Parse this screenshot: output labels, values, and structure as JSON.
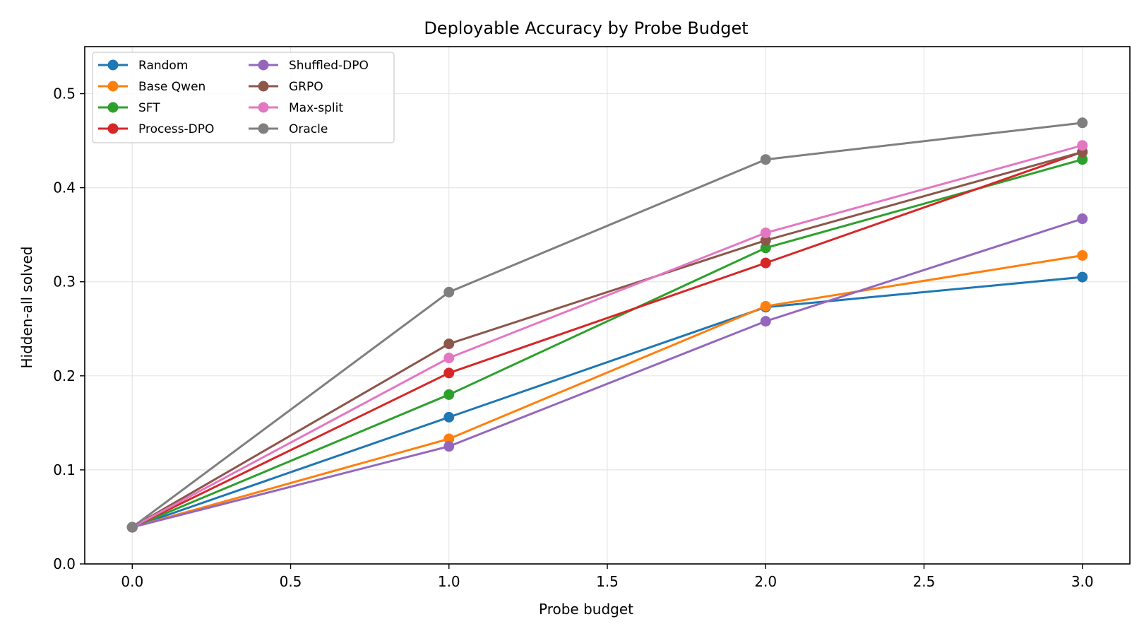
{
  "chart_data": {
    "type": "line",
    "title": "Deployable Accuracy by Probe Budget",
    "xlabel": "Probe budget",
    "ylabel": "Hidden-all solved",
    "x": [
      0,
      1,
      2,
      3
    ],
    "xlim": [
      -0.15,
      3.15
    ],
    "ylim": [
      0.0,
      0.55
    ],
    "xticks": [
      "0.0",
      "0.5",
      "1.0",
      "1.5",
      "2.0",
      "2.5",
      "3.0"
    ],
    "yticks": [
      "0.0",
      "0.1",
      "0.2",
      "0.3",
      "0.4",
      "0.5"
    ],
    "grid": true,
    "legend_position": "top-left",
    "legend_columns": 2,
    "series": [
      {
        "name": "Random",
        "color": "#1f77b4",
        "values": [
          0.039,
          0.156,
          0.273,
          0.305
        ]
      },
      {
        "name": "Base Qwen",
        "color": "#ff7f0e",
        "values": [
          0.039,
          0.133,
          0.274,
          0.328
        ]
      },
      {
        "name": "SFT",
        "color": "#2ca02c",
        "values": [
          0.039,
          0.18,
          0.336,
          0.43
        ]
      },
      {
        "name": "Process-DPO",
        "color": "#d62728",
        "values": [
          0.039,
          0.203,
          0.32,
          0.438
        ]
      },
      {
        "name": "Shuffled-DPO",
        "color": "#9467bd",
        "values": [
          0.039,
          0.125,
          0.258,
          0.367
        ]
      },
      {
        "name": "GRPO",
        "color": "#8c564b",
        "values": [
          0.039,
          0.234,
          0.344,
          0.438
        ]
      },
      {
        "name": "Max-split",
        "color": "#e377c2",
        "values": [
          0.039,
          0.219,
          0.352,
          0.445
        ]
      },
      {
        "name": "Oracle",
        "color": "#7f7f7f",
        "values": [
          0.039,
          0.289,
          0.43,
          0.469
        ]
      }
    ]
  }
}
